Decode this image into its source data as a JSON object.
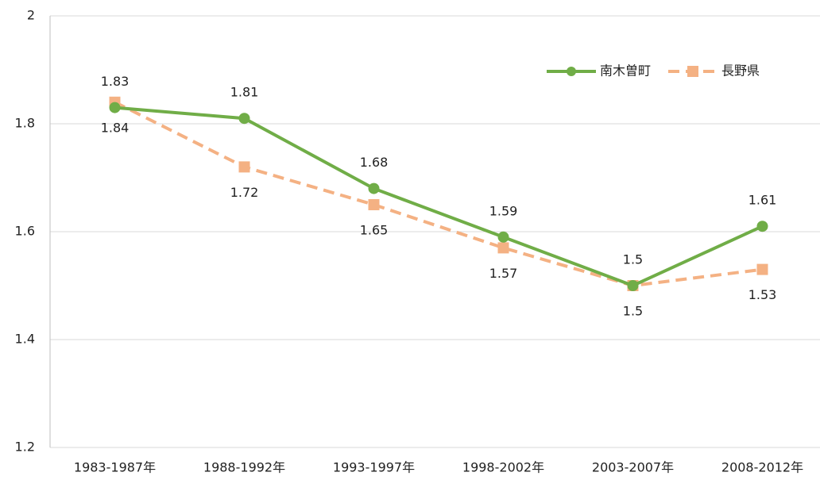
{
  "chart_data": {
    "type": "line",
    "categories": [
      "1983-1987年",
      "1988-1992年",
      "1993-1997年",
      "1998-2002年",
      "2003-2007年",
      "2008-2012年"
    ],
    "series": [
      {
        "name": "南木曽町",
        "color": "#70ad47",
        "values": [
          1.83,
          1.81,
          1.68,
          1.59,
          1.5,
          1.61
        ]
      },
      {
        "name": "長野県",
        "color": "#f4b183",
        "values": [
          1.84,
          1.72,
          1.65,
          1.57,
          1.5,
          1.53
        ]
      }
    ],
    "ylim": [
      1.2,
      2
    ],
    "yticks": [
      1.2,
      1.4,
      1.6,
      1.8,
      2
    ],
    "grid": true,
    "legend": "top-right"
  }
}
